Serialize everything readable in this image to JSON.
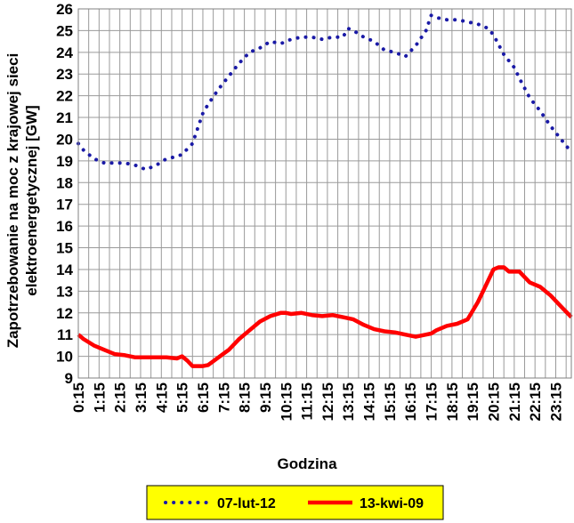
{
  "chart_data": {
    "type": "line",
    "xlabel": "Godzina",
    "ylabel_lines": [
      "Zapotrzebowanie na moc z krajowej sieci",
      "elektroenergetycznej [GW]"
    ],
    "ylim": [
      9,
      26
    ],
    "y_ticks": [
      "9",
      "10",
      "11",
      "12",
      "13",
      "14",
      "15",
      "16",
      "17",
      "18",
      "19",
      "20",
      "21",
      "22",
      "23",
      "24",
      "25",
      "26"
    ],
    "x_tick_labels": [
      "0:15",
      "1:15",
      "2:15",
      "3:15",
      "4:15",
      "5:15",
      "6:15",
      "7:15",
      "8:15",
      "9:15",
      "10:15",
      "11:15",
      "12:15",
      "13:15",
      "14:15",
      "15:15",
      "16:15",
      "17:15",
      "18:15",
      "19:15",
      "20:15",
      "21:15",
      "22:15",
      "23:15"
    ],
    "x_range_hours": [
      0.25,
      24.0
    ],
    "grid": true,
    "legend_position": "bottom",
    "plot_background": "#ffffff",
    "legend_background": "#ffff00",
    "series": [
      {
        "name": "07-lut-12",
        "color": "#1a1aa6",
        "style": "dotted",
        "x": [
          0.25,
          0.5,
          1.0,
          1.5,
          2.0,
          2.5,
          3.0,
          3.5,
          4.0,
          4.5,
          5.0,
          5.25,
          5.75,
          6.0,
          6.25,
          6.5,
          7.0,
          7.5,
          8.0,
          8.5,
          9.0,
          9.5,
          10.0,
          10.5,
          11.0,
          11.5,
          12.0,
          12.5,
          13.0,
          13.25,
          13.5,
          14.0,
          14.5,
          15.0,
          15.5,
          16.0,
          16.5,
          17.0,
          17.25,
          17.5,
          18.0,
          18.5,
          19.0,
          19.5,
          20.0,
          20.25,
          20.75,
          21.25,
          21.5,
          22.0,
          22.5,
          23.0,
          23.5,
          24.0
        ],
        "values": [
          19.8,
          19.5,
          19.1,
          18.9,
          18.9,
          18.9,
          18.8,
          18.6,
          18.8,
          19.1,
          19.2,
          19.3,
          19.8,
          20.5,
          21.2,
          21.6,
          22.3,
          22.9,
          23.5,
          24.0,
          24.2,
          24.5,
          24.4,
          24.6,
          24.7,
          24.7,
          24.6,
          24.7,
          24.7,
          25.1,
          25.0,
          24.7,
          24.5,
          24.1,
          24.0,
          23.8,
          24.3,
          25.0,
          25.7,
          25.6,
          25.5,
          25.5,
          25.4,
          25.3,
          25.1,
          24.8,
          23.9,
          23.3,
          22.8,
          21.9,
          21.3,
          20.6,
          20.0,
          19.4
        ]
      },
      {
        "name": "13-kwi-09",
        "color": "#ff0000",
        "style": "solid",
        "x": [
          0.25,
          0.5,
          1.0,
          1.5,
          2.0,
          2.5,
          3.0,
          3.5,
          4.0,
          4.5,
          5.0,
          5.25,
          5.5,
          5.75,
          6.0,
          6.25,
          6.5,
          7.0,
          7.5,
          8.0,
          8.5,
          9.0,
          9.5,
          10.0,
          10.25,
          10.5,
          11.0,
          11.5,
          12.0,
          12.5,
          13.0,
          13.5,
          14.0,
          14.5,
          15.0,
          15.5,
          16.0,
          16.5,
          17.0,
          17.25,
          17.5,
          18.0,
          18.5,
          19.0,
          19.5,
          20.0,
          20.25,
          20.5,
          20.75,
          21.0,
          21.25,
          21.5,
          22.0,
          22.5,
          23.0,
          23.5,
          24.0
        ],
        "values": [
          11.0,
          10.8,
          10.5,
          10.3,
          10.1,
          10.05,
          9.95,
          9.95,
          9.95,
          9.95,
          9.9,
          10.0,
          9.8,
          9.55,
          9.55,
          9.55,
          9.6,
          9.95,
          10.3,
          10.8,
          11.2,
          11.6,
          11.85,
          12.0,
          12.0,
          11.95,
          12.0,
          11.9,
          11.85,
          11.9,
          11.8,
          11.7,
          11.45,
          11.25,
          11.15,
          11.1,
          11.0,
          10.9,
          11.0,
          11.05,
          11.2,
          11.4,
          11.5,
          11.7,
          12.5,
          13.5,
          14.0,
          14.1,
          14.1,
          13.9,
          13.9,
          13.9,
          13.4,
          13.2,
          12.8,
          12.3,
          11.8
        ]
      }
    ]
  }
}
